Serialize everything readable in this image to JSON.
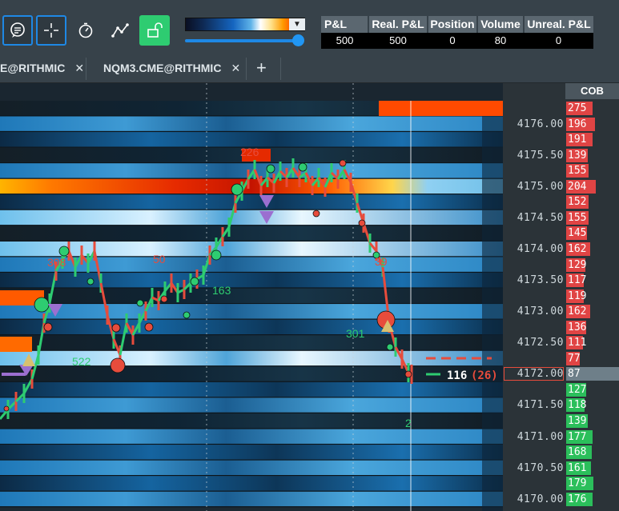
{
  "toolbar": {
    "buttons": [
      "chat-bubble-icon",
      "crosshair-icon",
      "stopwatch-icon",
      "line-tool-icon",
      "unlock-icon"
    ]
  },
  "stats": {
    "headers": [
      "P&L",
      "Real. P&L",
      "Position",
      "Volume",
      "Unreal. P&L"
    ],
    "values": [
      "500",
      "500",
      "0",
      "80",
      "0"
    ]
  },
  "tabs": [
    {
      "label": "E@RITHMIC"
    },
    {
      "label": "NQM3.CME@RITHMIC"
    }
  ],
  "add_tab_label": "+",
  "close_glyph": "✕",
  "cob": {
    "header": "COB"
  },
  "price_levels": [
    {
      "price": "",
      "cob": "275",
      "side": "ask"
    },
    {
      "price": "4176.00",
      "cob": "196",
      "side": "ask"
    },
    {
      "price": "",
      "cob": "191",
      "side": "ask"
    },
    {
      "price": "4175.50",
      "cob": "139",
      "side": "ask"
    },
    {
      "price": "",
      "cob": "155",
      "side": "ask"
    },
    {
      "price": "4175.00",
      "cob": "204",
      "side": "ask"
    },
    {
      "price": "",
      "cob": "152",
      "side": "ask"
    },
    {
      "price": "4174.50",
      "cob": "155",
      "side": "ask"
    },
    {
      "price": "",
      "cob": "145",
      "side": "ask"
    },
    {
      "price": "4174.00",
      "cob": "162",
      "side": "ask"
    },
    {
      "price": "",
      "cob": "129",
      "side": "ask"
    },
    {
      "price": "4173.50",
      "cob": "117",
      "side": "ask"
    },
    {
      "price": "",
      "cob": "119",
      "side": "ask"
    },
    {
      "price": "4173.00",
      "cob": "162",
      "side": "ask"
    },
    {
      "price": "",
      "cob": "136",
      "side": "ask"
    },
    {
      "price": "4172.50",
      "cob": "111",
      "side": "ask"
    },
    {
      "price": "",
      "cob": "77",
      "side": "ask"
    },
    {
      "price": "4172.00",
      "cob": "87",
      "side": "current"
    },
    {
      "price": "",
      "cob": "127",
      "side": "bid"
    },
    {
      "price": "4171.50",
      "cob": "118",
      "side": "bid"
    },
    {
      "price": "",
      "cob": "139",
      "side": "bid"
    },
    {
      "price": "4171.00",
      "cob": "177",
      "side": "bid"
    },
    {
      "price": "",
      "cob": "168",
      "side": "bid"
    },
    {
      "price": "4170.50",
      "cob": "161",
      "side": "bid"
    },
    {
      "price": "",
      "cob": "179",
      "side": "bid"
    },
    {
      "price": "4170.00",
      "cob": "176",
      "side": "bid"
    }
  ],
  "chart_labels": [
    {
      "text": "226",
      "color": "#e74c3c"
    },
    {
      "text": "308",
      "color": "#e74c3c"
    },
    {
      "text": "50",
      "color": "#e74c3c"
    },
    {
      "text": "163",
      "color": "#2ecc71"
    },
    {
      "text": "301",
      "color": "#2ecc71"
    },
    {
      "text": "522",
      "color": "#2ecc71"
    },
    {
      "text": "2",
      "color": "#2ecc71"
    },
    {
      "text": "39",
      "color": "#e74c3c"
    }
  ],
  "last_trade": {
    "volume": "116",
    "delta": "(26)"
  },
  "colors": {
    "ask": "#e04444",
    "bid": "#2bbf5b",
    "accent": "#1e88e5",
    "up": "#2ecc71",
    "down": "#e74c3c"
  }
}
